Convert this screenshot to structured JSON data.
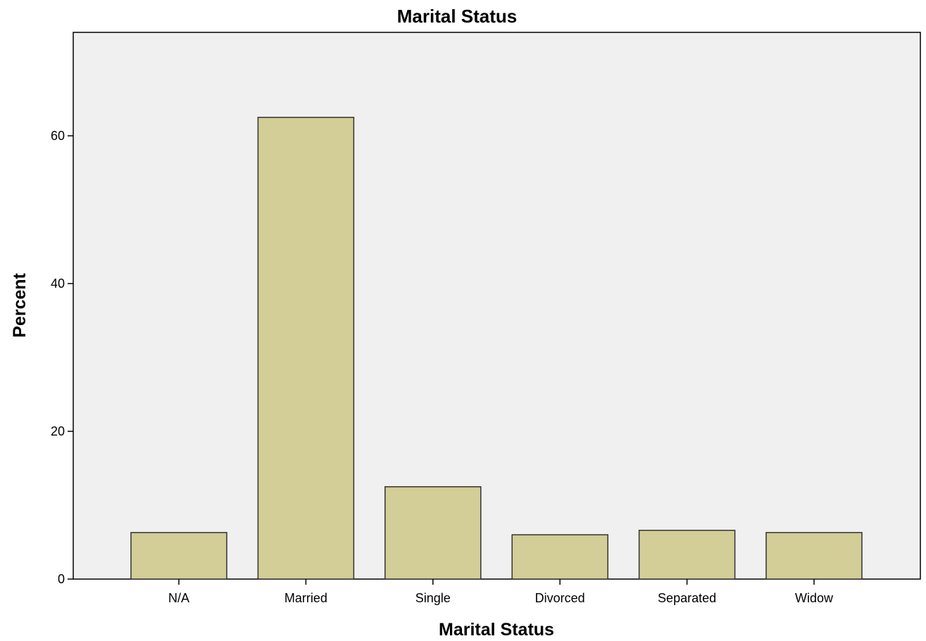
{
  "chart_data": {
    "type": "bar",
    "title": "Marital Status",
    "xlabel": "Marital Status",
    "ylabel": "Percent",
    "categories": [
      "N/A",
      "Married",
      "Single",
      "Divorced",
      "Separated",
      "Widow"
    ],
    "values": [
      6.3,
      62.5,
      12.5,
      6.0,
      6.6,
      6.3
    ],
    "yticks": [
      0,
      20,
      40,
      60
    ],
    "ylim": [
      0,
      74
    ],
    "grid": false,
    "bar_color": "#d3cd97",
    "plot_background": "#f0f0f0"
  }
}
